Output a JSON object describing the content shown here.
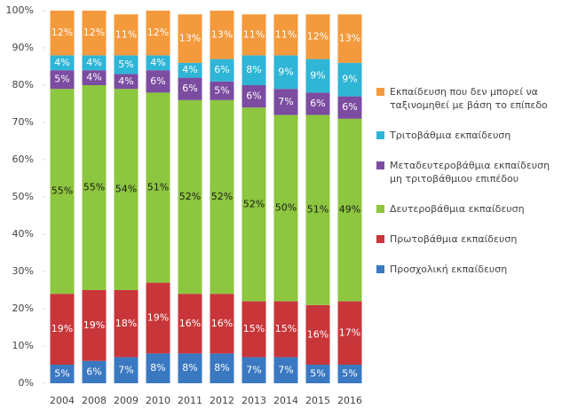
{
  "chart_data": {
    "type": "stacked_bar",
    "categories": [
      "2004",
      "2008",
      "2009",
      "2010",
      "2011",
      "2012",
      "2013",
      "2014",
      "2015",
      "2016"
    ],
    "ylim": [
      0,
      100
    ],
    "yticks": [
      {
        "value": 0,
        "label": "0%"
      },
      {
        "value": 10,
        "label": "10%"
      },
      {
        "value": 20,
        "label": "20%"
      },
      {
        "value": 30,
        "label": "30%"
      },
      {
        "value": 40,
        "label": "40%"
      },
      {
        "value": 50,
        "label": "50%"
      },
      {
        "value": 60,
        "label": "60%"
      },
      {
        "value": 70,
        "label": "70%"
      },
      {
        "value": 80,
        "label": "80%"
      },
      {
        "value": 90,
        "label": "90%"
      },
      {
        "value": 100,
        "label": "100%"
      }
    ],
    "legend": "right",
    "series": [
      {
        "name": "Προσχολική εκπαίδευση",
        "color": "#3a78c2",
        "label_color": "#ffffff",
        "values": [
          5,
          6,
          7,
          8,
          8,
          8,
          7,
          7,
          5,
          5
        ],
        "value_labels": [
          "5%",
          "6%",
          "7%",
          "8%",
          "8%",
          "8%",
          "7%",
          "7%",
          "5%",
          "5%"
        ]
      },
      {
        "name": "Πρωτοβάθμια εκπαίδευση",
        "color": "#c8363a",
        "label_color": "#ffffff",
        "values": [
          19,
          19,
          18,
          19,
          16,
          16,
          15,
          15,
          16,
          17
        ],
        "value_labels": [
          "19%",
          "19%",
          "18%",
          "19%",
          "16%",
          "16%",
          "15%",
          "15%",
          "16%",
          "17%"
        ]
      },
      {
        "name": "Δευτεροβάθμια εκπαίδευση",
        "color": "#8dc63f",
        "label_color": "#1a1a1a",
        "values": [
          55,
          55,
          54,
          51,
          52,
          52,
          52,
          50,
          51,
          49
        ],
        "value_labels": [
          "55%",
          "55%",
          "54%",
          "51%",
          "52%",
          "52%",
          "52%",
          "50%",
          "51%",
          "49%"
        ]
      },
      {
        "name": "Μεταδευτεροβάθμια εκπαίδευση μη τριτοβάθμιου επιπέδου",
        "color": "#7b4ca0",
        "label_color": "#ffffff",
        "values": [
          5,
          4,
          4,
          6,
          6,
          5,
          6,
          7,
          6,
          6
        ],
        "value_labels": [
          "5%",
          "4%",
          "4%",
          "6%",
          "6%",
          "5%",
          "6%",
          "7%",
          "6%",
          "6%"
        ]
      },
      {
        "name": "Τριτοβάθμια εκπαίδευση",
        "color": "#2fb5d6",
        "label_color": "#ffffff",
        "values": [
          4,
          4,
          5,
          4,
          4,
          6,
          8,
          9,
          9,
          9
        ],
        "value_labels": [
          "4%",
          "4%",
          "5%",
          "4%",
          "4%",
          "6%",
          "8%",
          "9%",
          "9%",
          "9%"
        ]
      },
      {
        "name": "Εκπαίδευση που δεν μπορεί να ταξινομηθεί με βάση το επίπεδο",
        "color": "#f39a3c",
        "label_color": "#ffffff",
        "values": [
          12,
          12,
          11,
          12,
          13,
          13,
          11,
          11,
          12,
          13
        ],
        "value_labels": [
          "12%",
          "12%",
          "11%",
          "12%",
          "13%",
          "13%",
          "11%",
          "11%",
          "12%",
          "13%"
        ]
      }
    ]
  }
}
